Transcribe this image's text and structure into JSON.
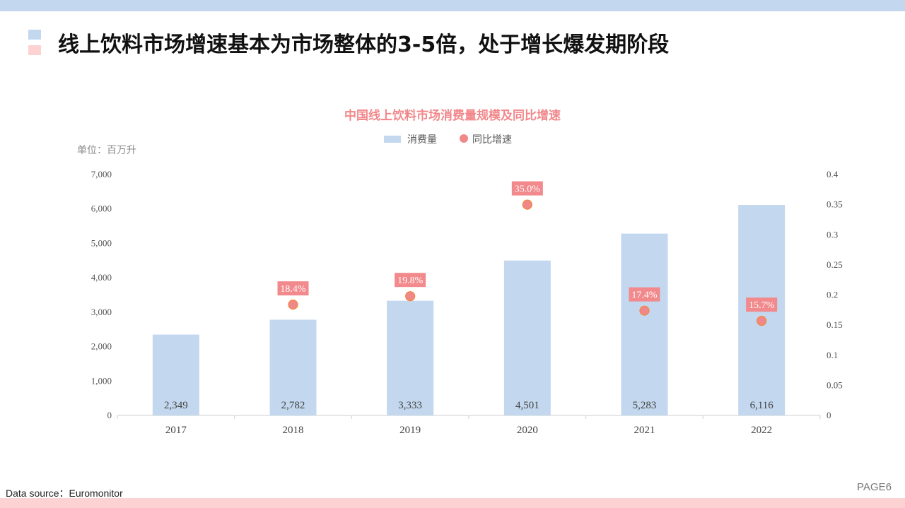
{
  "headline": "线上饮料市场增速基本为市场整体的3-5倍，处于增长爆发期阶段",
  "footer": {
    "source": "Data source：Euromonitor",
    "page": "PAGE6"
  },
  "colors": {
    "bar": "#c3d8ee",
    "dot": "#f0888a",
    "dot_border": "#f0883a",
    "label_bg": "#f2898c",
    "title": "#f2878a",
    "top_band": "#c3d8ee",
    "bottom_band": "#fcd2d3"
  },
  "chart_data": {
    "type": "bar",
    "title": "中国线上饮料市场消费量规模及同比增速",
    "unit": "单位：百万升",
    "categories": [
      "2017",
      "2018",
      "2019",
      "2020",
      "2021",
      "2022"
    ],
    "series": [
      {
        "name": "消费量",
        "type": "bar",
        "axis": "left",
        "values": [
          2349,
          2782,
          3333,
          4501,
          5283,
          6116
        ],
        "labels": [
          "2,349",
          "2,782",
          "3,333",
          "4,501",
          "5,283",
          "6,116"
        ]
      },
      {
        "name": "同比增速",
        "type": "scatter",
        "axis": "right",
        "values": [
          null,
          0.184,
          0.198,
          0.35,
          0.174,
          0.157
        ],
        "labels": [
          null,
          "18.4%",
          "19.8%",
          "35.0%",
          "17.4%",
          "15.7%"
        ]
      }
    ],
    "ylim_left": [
      0,
      7000
    ],
    "yticks_left": [
      "0",
      "1,000",
      "2,000",
      "3,000",
      "4,000",
      "5,000",
      "6,000",
      "7,000"
    ],
    "ylim_right": [
      0,
      0.4
    ],
    "yticks_right": [
      "0",
      "0.05",
      "0.1",
      "0.15",
      "0.2",
      "0.25",
      "0.3",
      "0.35",
      "0.4"
    ],
    "grid": false,
    "legend_position": "top-center"
  }
}
